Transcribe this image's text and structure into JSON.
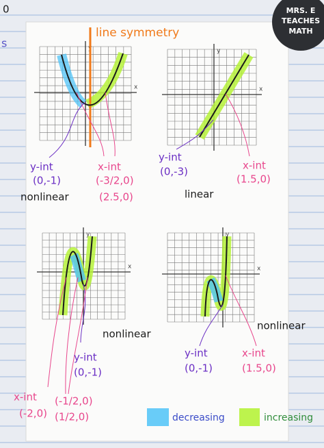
{
  "badge": {
    "lines": [
      "MRS. E",
      "TEACHES",
      "MATH"
    ]
  },
  "margin_marks": [
    "0",
    "s"
  ],
  "annotation": "line symmetry",
  "graphs": [
    {
      "axis_labels": [
        "y",
        "x"
      ],
      "y_int": {
        "label": "y-int",
        "point": "(0,-1)"
      },
      "x_int": {
        "label": "x-int",
        "points": [
          "(-3/2,0)",
          "(2.5,0)"
        ]
      },
      "kind": "nonlinear"
    },
    {
      "axis_labels": [
        "y",
        "x"
      ],
      "y_int": {
        "label": "y-int",
        "point": "(0,-3)"
      },
      "x_int": {
        "label": "x-int",
        "points": [
          "(1.5,0)"
        ]
      },
      "kind": "linear"
    },
    {
      "axis_labels": [
        "y",
        "x"
      ],
      "y_int": {
        "label": "y-int",
        "point": "(0,-1)"
      },
      "x_int": {
        "label": "x-int",
        "points": [
          "(-2,0)",
          "(-1/2,0)",
          "(1/2,0)"
        ]
      },
      "kind": "nonlinear"
    },
    {
      "axis_labels": [
        "y",
        "x"
      ],
      "y_int": {
        "label": "y-int",
        "point": "(0,-1)"
      },
      "x_int": {
        "label": "x-int",
        "points": [
          "(1.5,0)"
        ]
      },
      "kind": "nonlinear"
    }
  ],
  "legend": [
    "decreasing",
    "increasing"
  ]
}
